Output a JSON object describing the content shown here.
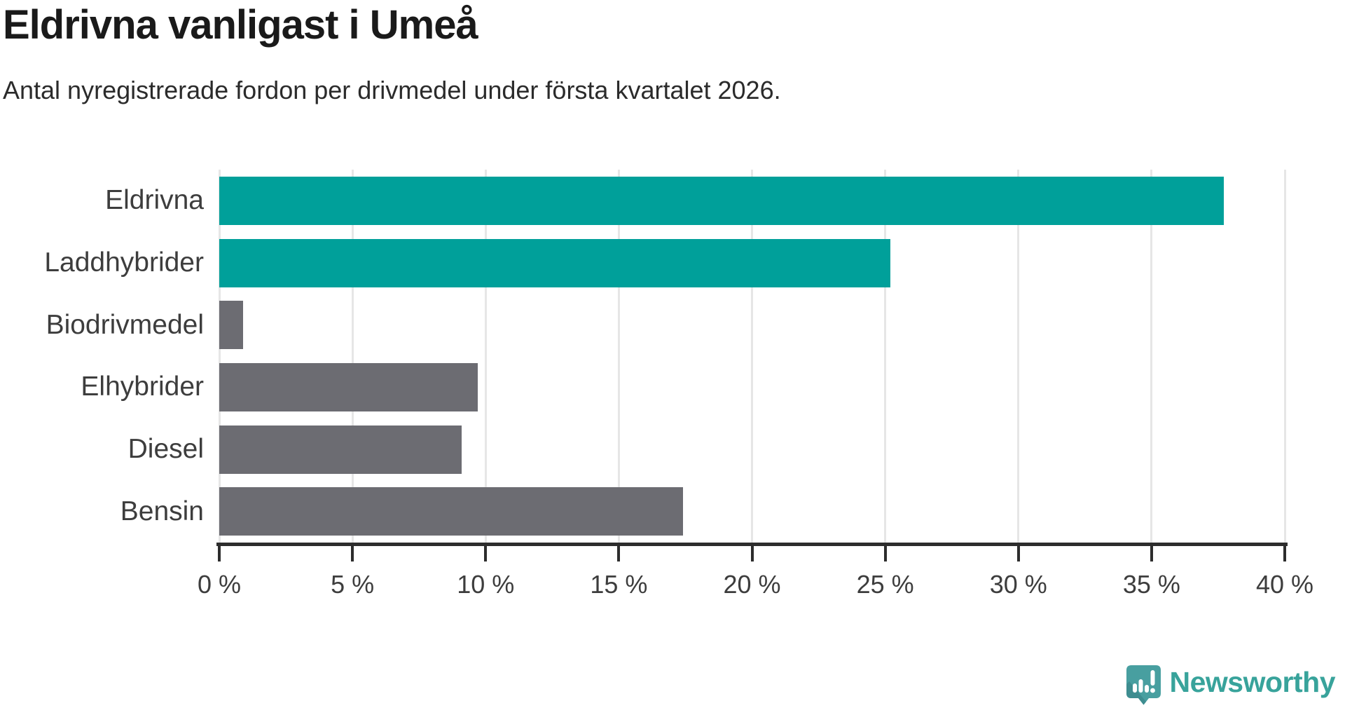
{
  "header": {
    "title": "Eldrivna vanligast i Umeå",
    "subtitle": "Antal nyregistrerade fordon per drivmedel under första kvartalet 2026."
  },
  "chart_data": {
    "type": "bar",
    "orientation": "horizontal",
    "title": "Eldrivna vanligast i Umeå",
    "subtitle": "Antal nyregistrerade fordon per drivmedel under första kvartalet 2026.",
    "categories": [
      "Eldrivna",
      "Laddhybrider",
      "Biodrivmedel",
      "Elhybrider",
      "Diesel",
      "Bensin"
    ],
    "values": [
      37.7,
      25.2,
      0.9,
      9.7,
      9.1,
      17.4
    ],
    "unit": "%",
    "bar_colors": [
      "#00A09A",
      "#00A09A",
      "#6C6C72",
      "#6C6C72",
      "#6C6C72",
      "#6C6C72"
    ],
    "xlabel": "",
    "ylabel": "",
    "xlim": [
      0,
      40
    ],
    "x_ticks": [
      0,
      5,
      10,
      15,
      20,
      25,
      30,
      35,
      40
    ],
    "tick_suffix": " %",
    "grid": true,
    "legend": false,
    "colors": {
      "accent_teal": "#00A09A",
      "bar_gray": "#6C6C72",
      "grid_line": "#E6E6E6",
      "axis_line": "#2D2D2D",
      "label_text": "#3D3D3D"
    }
  },
  "footer": {
    "brand": "Newsworthy",
    "logo_icon": "newsworthy-speech-bubble-bar-chart-icon",
    "logo_color": "#489FA0",
    "logo_text_color": "#38A39B"
  }
}
